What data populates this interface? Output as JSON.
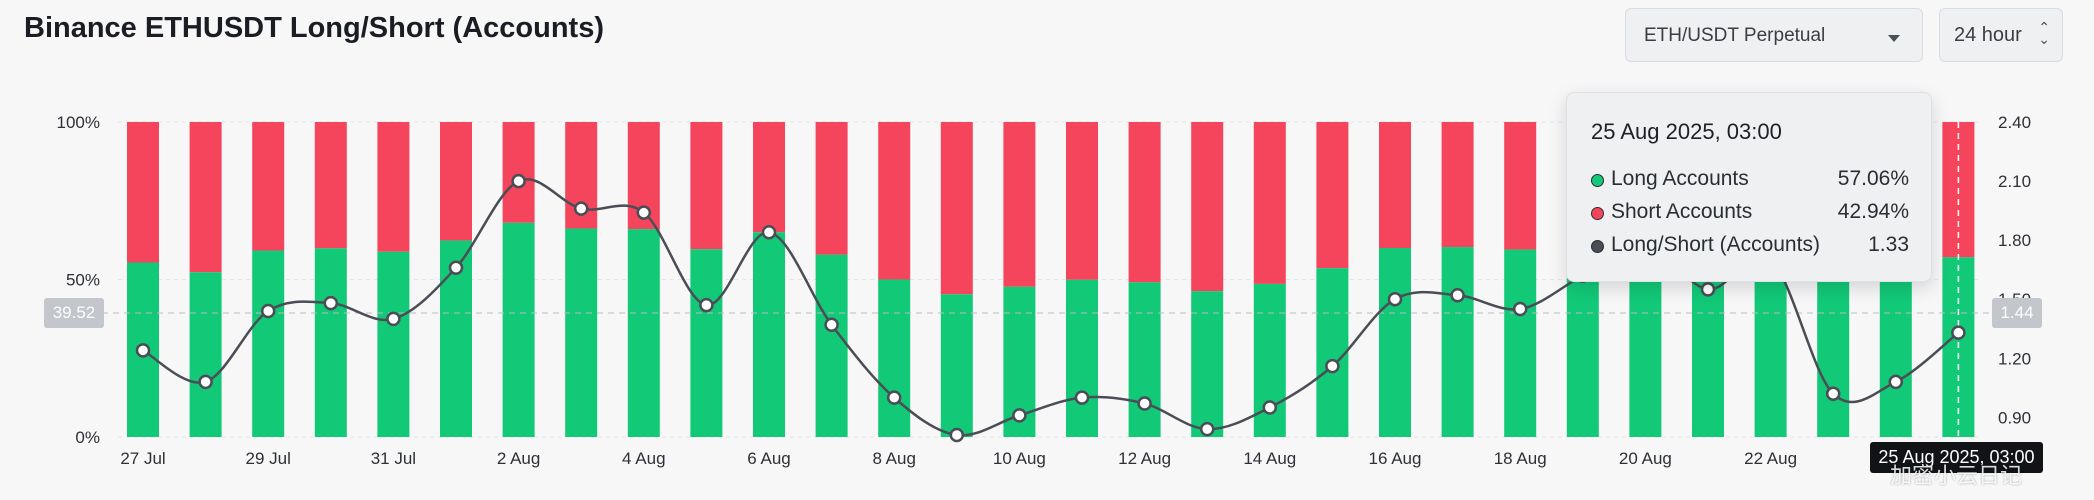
{
  "header": {
    "title": "Binance ETHUSDT Long/Short (Accounts)",
    "market_select": "ETH/USDT Perpetual",
    "period_select": "24 hour"
  },
  "colors": {
    "long": "#12c978",
    "short": "#f5455c",
    "ratio_line": "#4a4d55",
    "background": "#f7f7f8"
  },
  "chart_data": {
    "type": "bar",
    "stacked": true,
    "title": "Binance ETHUSDT Long/Short (Accounts)",
    "x_tick_labels": [
      "27 Jul",
      "29 Jul",
      "31 Jul",
      "2 Aug",
      "4 Aug",
      "6 Aug",
      "8 Aug",
      "10 Aug",
      "12 Aug",
      "14 Aug",
      "16 Aug",
      "18 Aug",
      "20 Aug",
      "22 Aug"
    ],
    "categories": [
      "27 Jul",
      "28 Jul",
      "29 Jul",
      "30 Jul",
      "31 Jul",
      "1 Aug",
      "2 Aug",
      "3 Aug",
      "4 Aug",
      "5 Aug",
      "6 Aug",
      "7 Aug",
      "8 Aug",
      "9 Aug",
      "10 Aug",
      "11 Aug",
      "12 Aug",
      "13 Aug",
      "14 Aug",
      "15 Aug",
      "16 Aug",
      "17 Aug",
      "18 Aug",
      "19 Aug",
      "20 Aug",
      "21 Aug",
      "22 Aug",
      "23 Aug",
      "24 Aug",
      "25 Aug"
    ],
    "y_left": {
      "ticks": [
        "0%",
        "50%",
        "100%"
      ],
      "range": [
        0,
        100
      ]
    },
    "y_right": {
      "ticks": [
        "0.90",
        "1.20",
        "1.50",
        "1.80",
        "2.10",
        "2.40"
      ],
      "range": [
        0.8,
        2.4
      ]
    },
    "series": [
      {
        "name": "Long Accounts",
        "axis": "left",
        "values": [
          55.4,
          52.3,
          59.2,
          59.9,
          58.8,
          62.4,
          68.0,
          66.2,
          66.0,
          59.6,
          65.0,
          57.9,
          50.0,
          45.3,
          47.7,
          49.9,
          49.1,
          46.3,
          48.6,
          53.6,
          60.0,
          60.3,
          59.5,
          61.0,
          59.5,
          55.0,
          60.0,
          54.0,
          56.0,
          57.06
        ]
      },
      {
        "name": "Short Accounts",
        "axis": "left",
        "values": [
          44.6,
          47.7,
          40.8,
          40.1,
          41.2,
          37.6,
          32.0,
          33.8,
          34.0,
          40.4,
          35.0,
          42.1,
          50.0,
          54.7,
          52.3,
          50.1,
          50.9,
          53.7,
          51.4,
          46.4,
          40.0,
          39.7,
          40.5,
          39.0,
          40.5,
          45.0,
          40.0,
          46.0,
          44.0,
          42.94
        ]
      },
      {
        "name": "Long/Short (Accounts)",
        "axis": "right",
        "type": "line",
        "values": [
          1.24,
          1.08,
          1.44,
          1.48,
          1.4,
          1.66,
          2.1,
          1.96,
          1.94,
          1.47,
          1.84,
          1.37,
          1.0,
          0.81,
          0.91,
          1.0,
          0.97,
          0.84,
          0.95,
          1.16,
          1.5,
          1.52,
          1.45,
          1.62,
          1.78,
          1.55,
          1.7,
          1.02,
          1.08,
          1.33
        ]
      }
    ],
    "crosshair": {
      "left_label": "39.52",
      "right_label": "1.44",
      "date_label": "25 Aug 2025, 03:00"
    },
    "grid": true
  },
  "tooltip": {
    "title": "25 Aug 2025, 03:00",
    "rows": [
      {
        "name": "Long Accounts",
        "value": "57.06%",
        "color": "#12c978"
      },
      {
        "name": "Short Accounts",
        "value": "42.94%",
        "color": "#f5455c"
      },
      {
        "name": "Long/Short (Accounts)",
        "value": "1.33",
        "color": "#4a4d55"
      }
    ]
  },
  "watermark": "加密小云日记"
}
